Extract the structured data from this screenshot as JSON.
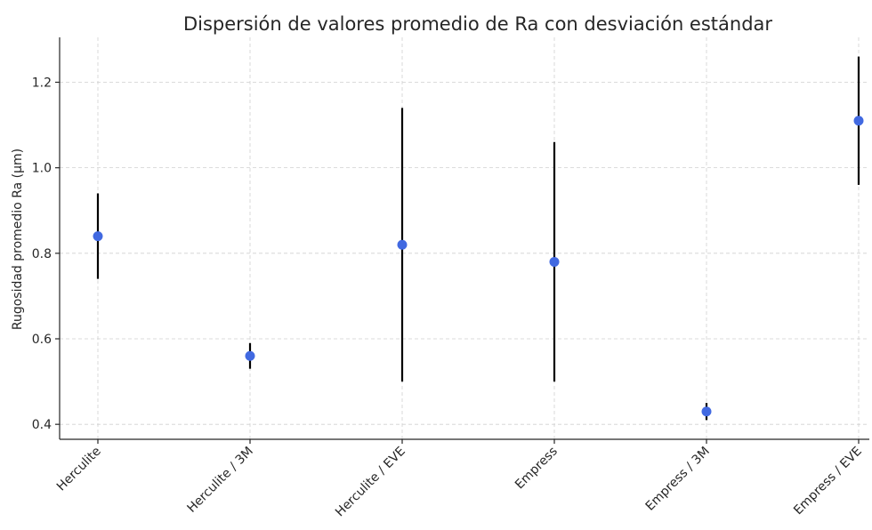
{
  "chart_data": {
    "type": "scatter",
    "title": "Dispersión de valores promedio de Ra con desviación estándar",
    "xlabel": "",
    "ylabel": "Rugosidad promedio Ra (µm)",
    "categories": [
      "Herculite",
      "Herculite / 3M",
      "Herculite / EVE",
      "Empress",
      "Empress / 3M",
      "Empress / EVE"
    ],
    "values": [
      0.84,
      0.56,
      0.82,
      0.78,
      0.43,
      1.11
    ],
    "std": [
      0.1,
      0.03,
      0.32,
      0.28,
      0.02,
      0.15
    ],
    "ylim": [
      0.365,
      1.305
    ],
    "yticks": [
      0.4,
      0.6,
      0.8,
      1.0,
      1.2
    ],
    "ytick_labels": [
      "0.4",
      "0.6",
      "0.8",
      "1.0",
      "1.2"
    ],
    "grid": true,
    "marker_color": "#4169e1",
    "errorbar_color": "#000000"
  }
}
